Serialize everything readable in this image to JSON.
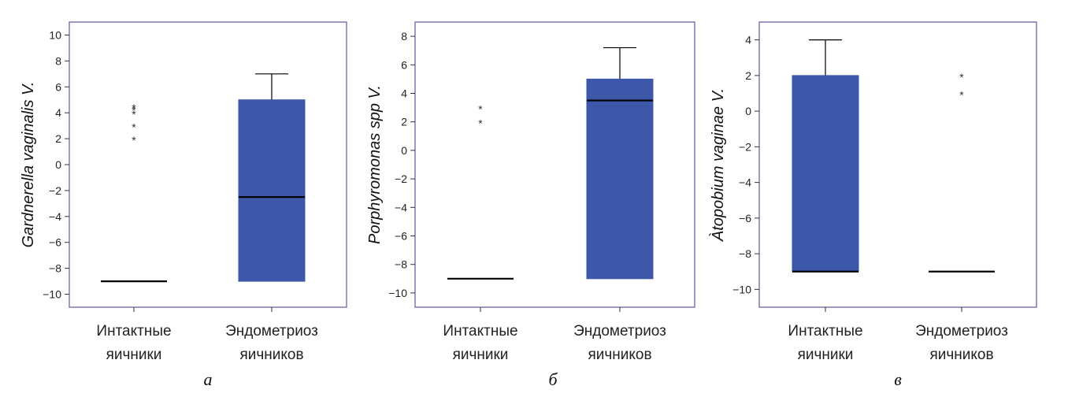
{
  "colors": {
    "box_fill": "#3d57a9",
    "frame": "#6a64a3",
    "median": "#000000",
    "whisker": "#000000"
  },
  "chart_data": [
    {
      "type": "box",
      "panel_letter": "а",
      "ylabel": "Gardnerella vaginalis V.",
      "ylim": [
        -11,
        11
      ],
      "yticks": [
        -10,
        -8,
        -6,
        -4,
        -2,
        0,
        2,
        4,
        6,
        8,
        10
      ],
      "categories": [
        {
          "label_lines": [
            "Интактные",
            "яичники"
          ],
          "box": {
            "q1": -9,
            "median": -9,
            "q3": -9,
            "whisker_low": -9,
            "whisker_high": -9
          },
          "outliers": [
            2,
            3,
            4,
            4.3,
            4.5
          ]
        },
        {
          "label_lines": [
            "Эндометриоз",
            "яичников"
          ],
          "box": {
            "q1": -9,
            "median": -2.5,
            "q3": 5,
            "whisker_low": -9,
            "whisker_high": 7
          },
          "outliers": []
        }
      ]
    },
    {
      "type": "box",
      "panel_letter": "б",
      "ylabel": "Porphyromonas spp V.",
      "ylim": [
        -11,
        9
      ],
      "yticks": [
        -10,
        -8,
        -6,
        -4,
        -2,
        0,
        2,
        4,
        6,
        8
      ],
      "categories": [
        {
          "label_lines": [
            "Интактные",
            "яичники"
          ],
          "box": {
            "q1": -9,
            "median": -9,
            "q3": -9,
            "whisker_low": -9,
            "whisker_high": -9
          },
          "outliers": [
            2,
            3
          ]
        },
        {
          "label_lines": [
            "Эндометриоз",
            "яичников"
          ],
          "box": {
            "q1": -9,
            "median": 3.5,
            "q3": 5,
            "whisker_low": -9,
            "whisker_high": 7.2
          },
          "outliers": []
        }
      ]
    },
    {
      "type": "box",
      "panel_letter": "в",
      "ylabel": "Àtopobium vaginae V.",
      "ylim": [
        -11,
        5
      ],
      "yticks": [
        -10,
        -8,
        -6,
        -4,
        -2,
        0,
        2,
        4
      ],
      "categories": [
        {
          "label_lines": [
            "Интактные",
            "яичники"
          ],
          "box": {
            "q1": -9,
            "median": -9,
            "q3": 2,
            "whisker_low": -9,
            "whisker_high": 4
          },
          "outliers": []
        },
        {
          "label_lines": [
            "Эндометриоз",
            "яичников"
          ],
          "box": {
            "q1": -9,
            "median": -9,
            "q3": -9,
            "whisker_low": -9,
            "whisker_high": -9
          },
          "outliers": [
            1,
            2
          ]
        }
      ]
    }
  ]
}
